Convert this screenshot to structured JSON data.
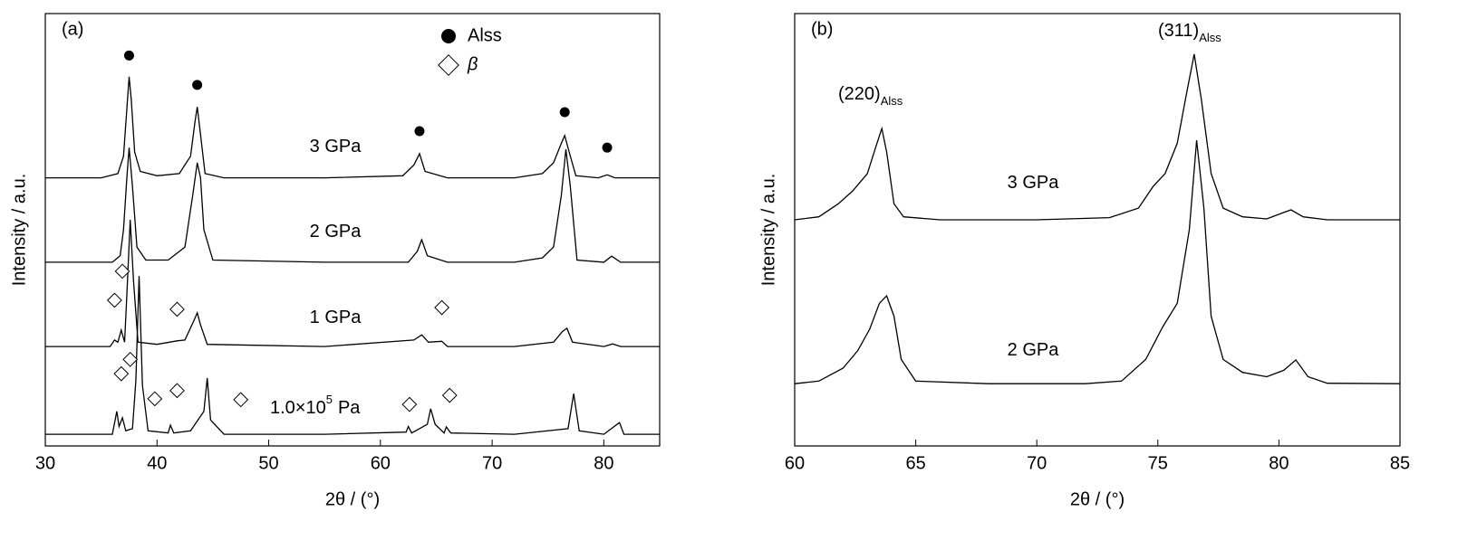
{
  "chart_data": [
    {
      "type": "line",
      "label": "(a)",
      "xlabel": "2θ / (°)",
      "ylabel": "Intensity / a.u.",
      "xlim": [
        30,
        85
      ],
      "xticks": [
        30,
        40,
        50,
        60,
        70,
        80
      ],
      "ylim": [
        0,
        100
      ],
      "color": "#000000",
      "series": [
        {
          "x": [
            30,
            35,
            36.5,
            37,
            37.3,
            37.5,
            37.7,
            38,
            38.5,
            40,
            42,
            43,
            43.4,
            43.6,
            43.9,
            44.3,
            46,
            55,
            62,
            63,
            63.5,
            64,
            66,
            72,
            74.5,
            75.5,
            76.2,
            76.5,
            76.9,
            77.5,
            79.5,
            80.3,
            81,
            85
          ],
          "values": [
            62,
            62,
            63,
            67,
            78,
            85.4,
            80,
            68,
            63.5,
            62.5,
            63,
            67,
            75,
            78.4,
            72,
            63,
            62,
            62,
            62.5,
            65,
            67.6,
            63.5,
            62,
            62,
            63,
            65.5,
            70,
            71.8,
            68,
            62.5,
            62,
            62.7,
            62,
            62
          ]
        },
        {
          "x": [
            30,
            36,
            36.7,
            37,
            37.3,
            37.5,
            37.8,
            38.2,
            39,
            41,
            42.5,
            43.2,
            43.6,
            43.9,
            44.2,
            45,
            55,
            62.5,
            63.3,
            63.7,
            64.2,
            66,
            72,
            74.5,
            75.5,
            76.2,
            76.6,
            77,
            77.6,
            80,
            80.7,
            81.5,
            85
          ],
          "values": [
            42.5,
            42.5,
            44,
            50,
            62,
            69,
            60,
            46,
            43,
            43,
            46,
            58,
            65.5,
            62,
            50,
            43,
            42.5,
            42.5,
            45,
            47.7,
            44,
            42.5,
            42.5,
            43.5,
            46,
            58,
            68.6,
            60,
            43,
            42.5,
            43.9,
            42.5,
            42.5
          ]
        },
        {
          "x": [
            30,
            35.8,
            36.2,
            36.5,
            36.8,
            37.1,
            37.3,
            37.6,
            37.9,
            38.3,
            40,
            41.8,
            42.5,
            43.3,
            43.6,
            43.9,
            44.5,
            55,
            63,
            63.7,
            64.3,
            65.5,
            66,
            72,
            75.5,
            76.3,
            76.7,
            77.2,
            80,
            80.8,
            81.5,
            85
          ],
          "values": [
            23,
            23,
            24.5,
            24,
            26.8,
            24,
            35,
            52.3,
            38,
            24,
            23.5,
            24.3,
            24.5,
            29,
            30.8,
            28,
            23.5,
            23,
            24.5,
            25.7,
            24,
            24.2,
            23,
            23,
            24,
            26.5,
            27.2,
            24,
            23,
            23.6,
            23,
            23
          ]
        },
        {
          "x": [
            30,
            36,
            36.4,
            36.6,
            36.9,
            37.2,
            37.8,
            38.1,
            38.4,
            38.7,
            39.2,
            41,
            41.2,
            41.5,
            43,
            44.2,
            44.5,
            44.8,
            46,
            55,
            62.3,
            62.5,
            62.8,
            64.2,
            64.5,
            64.9,
            65.7,
            65.9,
            66.3,
            72,
            76.8,
            77.3,
            77.8,
            80,
            81.4,
            81.8,
            85
          ],
          "values": [
            2.7,
            2.7,
            8,
            4.5,
            6.5,
            3.5,
            4,
            15,
            39.3,
            14,
            3.5,
            3,
            4.8,
            3,
            3.5,
            8,
            15.7,
            6,
            2.7,
            2.7,
            3.2,
            4.5,
            3,
            5,
            8.6,
            5,
            3,
            4.4,
            3,
            2.7,
            4,
            12.1,
            3.5,
            2.7,
            5.4,
            2.7,
            2.7
          ]
        }
      ],
      "annotations": [
        {
          "text": "3 GPa"
        },
        {
          "text": "2 GPa"
        },
        {
          "text": "1 GPa"
        },
        {
          "text": "1.0×10",
          "sup": "5",
          "suffix": "Pa"
        }
      ],
      "markers": [
        {
          "name": "Alss",
          "symbol": "circle",
          "x": [
            37.5,
            43.6,
            63.5,
            76.5,
            80.3
          ],
          "values": [
            90.3,
            83.5,
            72.8,
            77.2,
            69
          ]
        },
        {
          "name": "β",
          "symbol": "diamond",
          "x": [
            36.9,
            36.2,
            41.8,
            65.5,
            37.6,
            36.8,
            39.8,
            41.8,
            47.5,
            62.6,
            66.2
          ],
          "values": [
            40.4,
            33.7,
            31.6,
            32,
            20,
            16.7,
            10.9,
            12.8,
            10.7,
            9.6,
            11.7
          ]
        }
      ]
    },
    {
      "type": "line",
      "label": "(b)",
      "xlabel": "2θ / (°)",
      "ylabel": "Intensity / a.u.",
      "xlim": [
        60,
        85
      ],
      "xticks": [
        60,
        65,
        70,
        75,
        80,
        85
      ],
      "ylim": [
        0,
        100
      ],
      "color": "#000000",
      "series": [
        {
          "x": [
            60,
            61,
            61.8,
            62.4,
            63,
            63.4,
            63.6,
            63.8,
            64.1,
            64.5,
            66,
            70,
            73,
            74.2,
            74.8,
            75.3,
            75.8,
            76.2,
            76.5,
            76.8,
            77.2,
            77.7,
            78.5,
            79.5,
            80.2,
            80.5,
            81,
            82,
            85
          ],
          "values": [
            52.3,
            53,
            56,
            59,
            63,
            70,
            73.4,
            68,
            56,
            53,
            52.3,
            52.3,
            52.8,
            55,
            60,
            63,
            70,
            82,
            90.6,
            80,
            63,
            55,
            53,
            52.5,
            54,
            54.6,
            53,
            52.3,
            52.3
          ]
        },
        {
          "x": [
            60,
            61,
            62,
            62.6,
            63.1,
            63.5,
            63.8,
            64.1,
            64.4,
            65,
            68,
            72,
            73.5,
            74.5,
            75.2,
            75.8,
            76.3,
            76.6,
            76.9,
            77.2,
            77.7,
            78.5,
            79.5,
            80.2,
            80.7,
            81.2,
            82,
            85
          ],
          "values": [
            14.4,
            15,
            18,
            22,
            27,
            33,
            34.7,
            30,
            20,
            15,
            14.4,
            14.4,
            15,
            20,
            27.5,
            33,
            50,
            70.7,
            55,
            30,
            20,
            17,
            16,
            17.5,
            19.9,
            16,
            14.5,
            14.4
          ]
        }
      ],
      "annotations": [
        {
          "text": "(220)",
          "sub": "Alss"
        },
        {
          "text": "(311)",
          "sub": "Alss"
        },
        {
          "text": "3 GPa"
        },
        {
          "text": "2 GPa"
        }
      ]
    }
  ]
}
